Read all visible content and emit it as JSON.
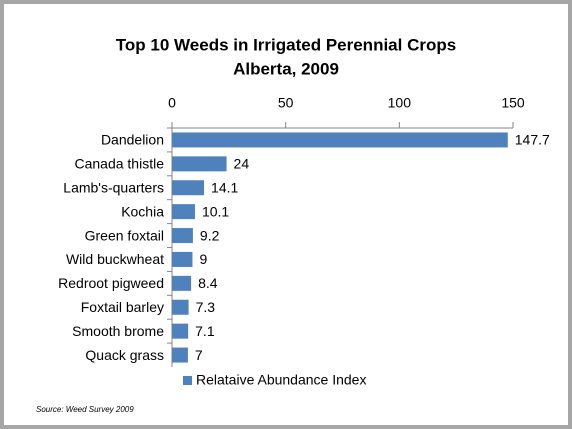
{
  "chart_data": {
    "type": "bar",
    "orientation": "horizontal",
    "title": "Top 10 Weeds in Irrigated Perennial Crops",
    "subtitle": "Alberta, 2009",
    "categories": [
      "Dandelion",
      "Canada thistle",
      "Lamb's-quarters",
      "Kochia",
      "Green foxtail",
      "Wild buckwheat",
      "Redroot pigweed",
      "Foxtail barley",
      "Smooth brome",
      "Quack grass"
    ],
    "series": [
      {
        "name": "Relataive Abundance Index",
        "color": "#4f81bd",
        "values": [
          147.7,
          24,
          14.1,
          10.1,
          9.2,
          9,
          8.4,
          7.3,
          7.1,
          7
        ]
      }
    ],
    "xlim": [
      0,
      150
    ],
    "xticks": [
      0,
      50,
      100,
      150
    ],
    "legend": "bottom",
    "source": "Source: Weed Survey 2009"
  }
}
